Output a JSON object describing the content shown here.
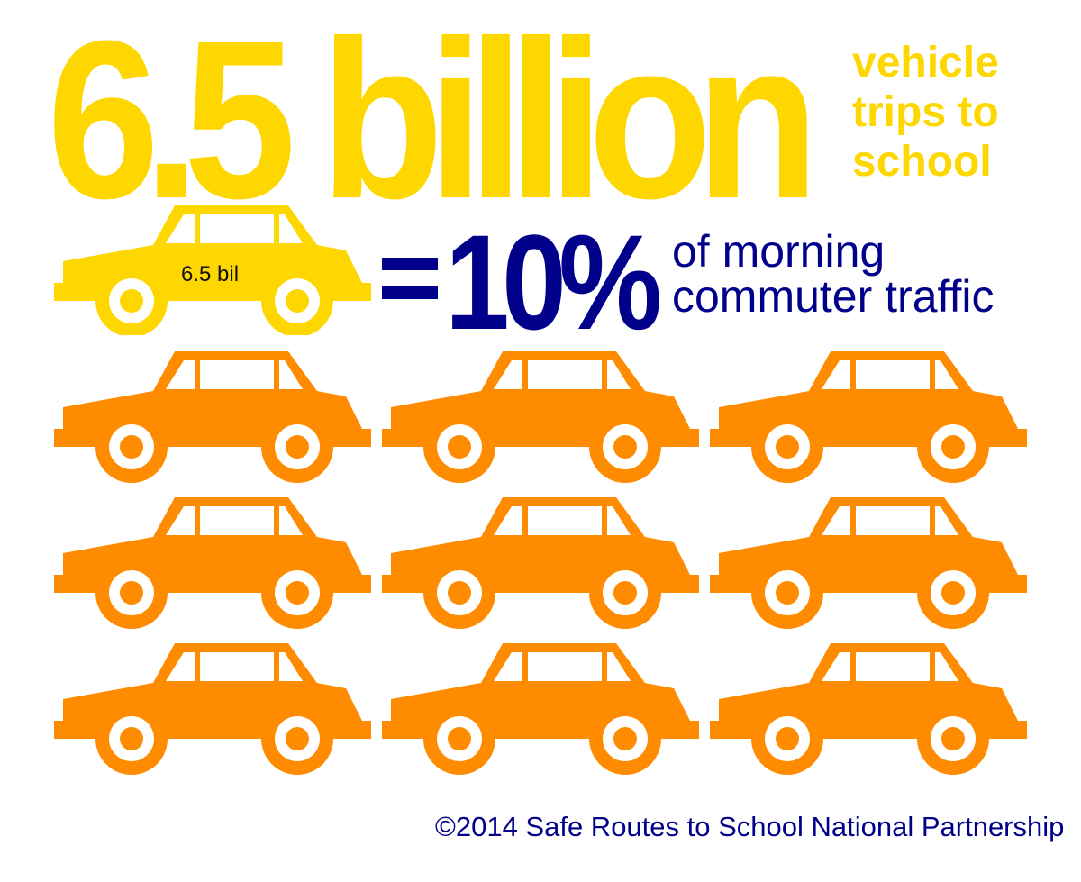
{
  "headline": {
    "number": "6.5 billion",
    "subtitle_lines": [
      "vehicle",
      "trips to",
      "school"
    ]
  },
  "comparison": {
    "car_label": "6.5 bil",
    "equals": "=",
    "percent": "10%",
    "description_lines": [
      "of morning",
      "commuter traffic"
    ]
  },
  "grid": {
    "rows": 3,
    "columns": 3,
    "icon": "car-icon"
  },
  "footer": {
    "copyright": "©2014 Safe Routes to School National Partnership"
  },
  "colors": {
    "yellow": "#FFD700",
    "orange": "#FF8C00",
    "navy": "#00008B"
  }
}
